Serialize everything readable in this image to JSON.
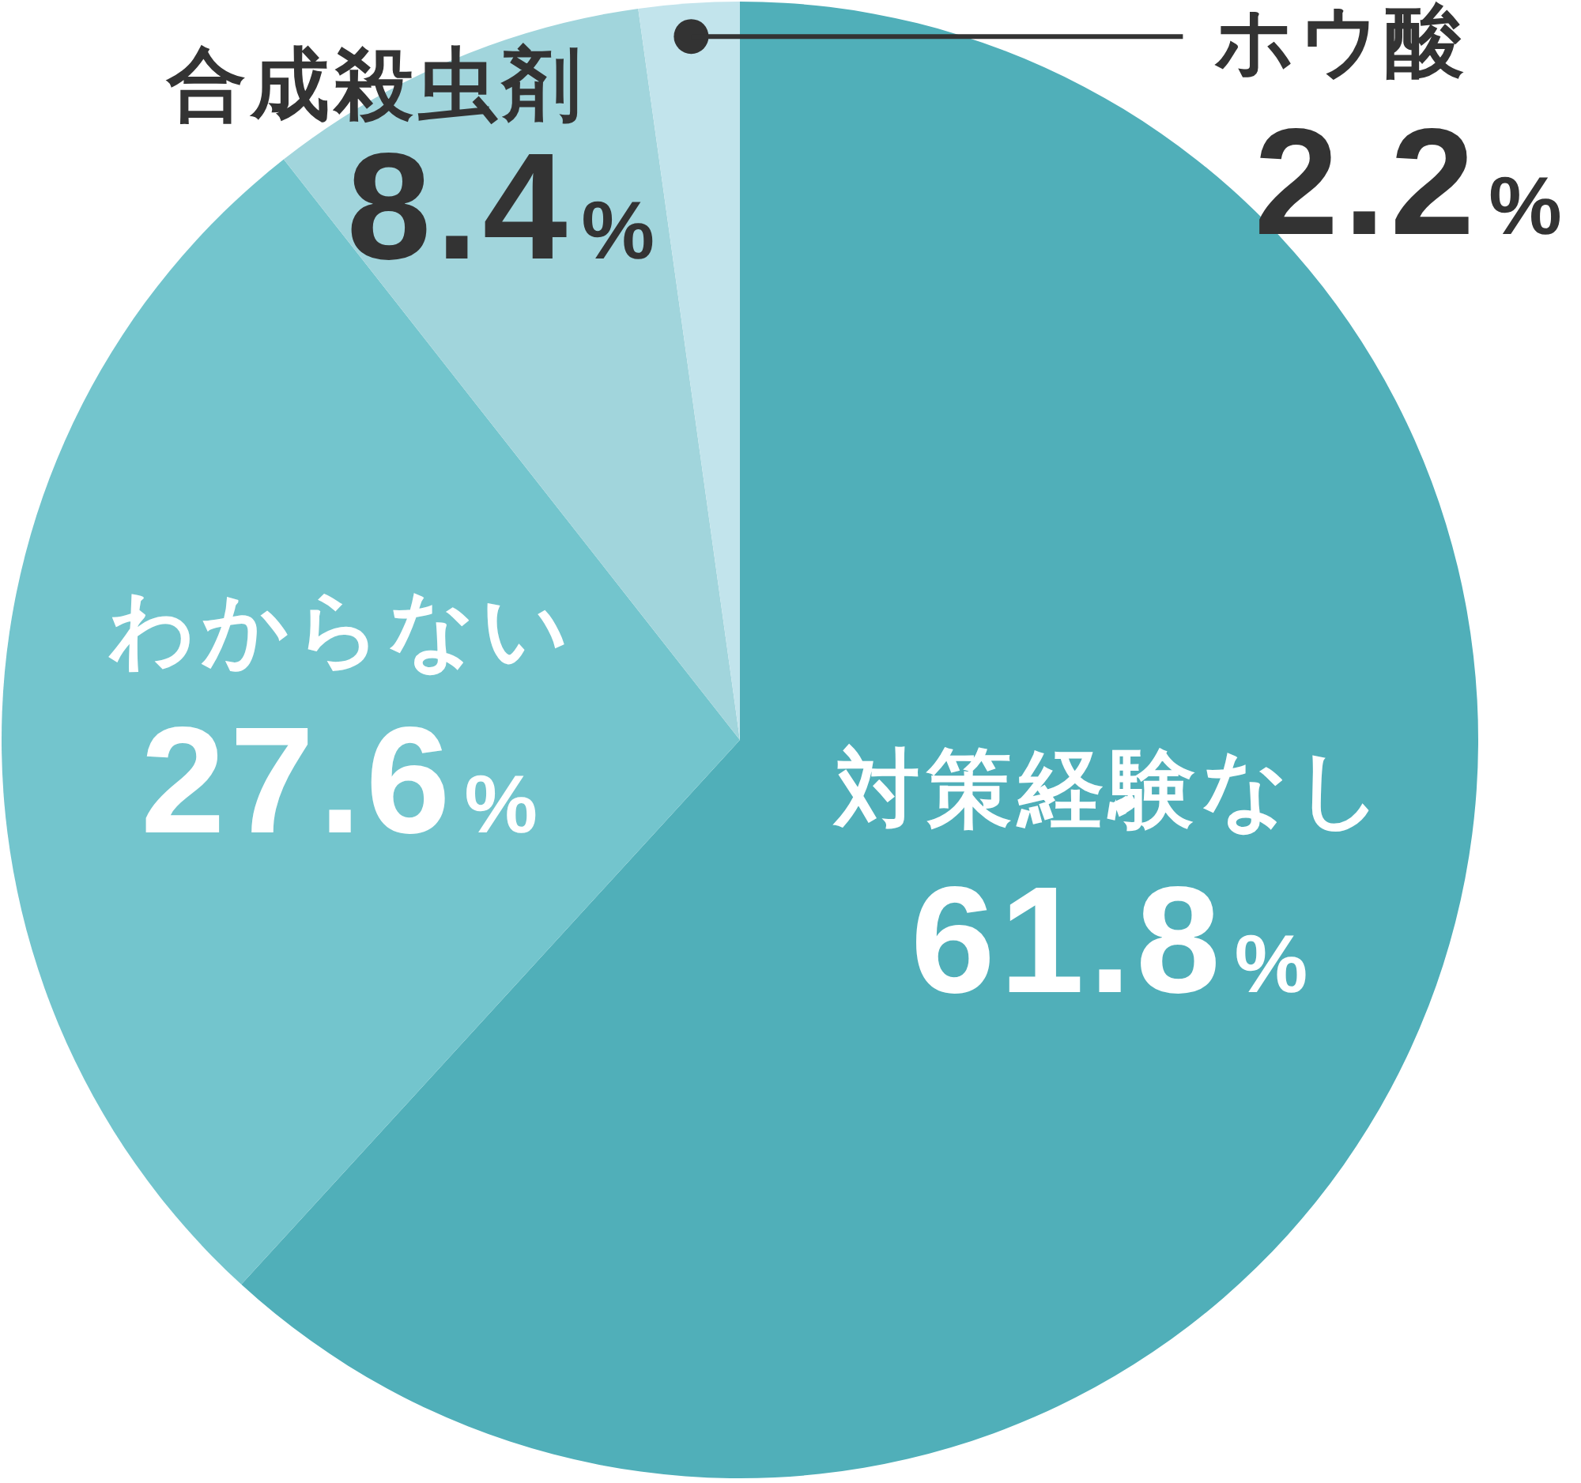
{
  "chart_data": {
    "type": "pie",
    "categories": [
      "対策経験なし",
      "わからない",
      "合成殺虫剤",
      "ホウ酸"
    ],
    "values": [
      61.8,
      27.6,
      8.4,
      2.2
    ],
    "colors": [
      "#50afb9",
      "#73c5cd",
      "#a1d5dc",
      "#c2e4ec"
    ],
    "value_labels": [
      "61.8%",
      "27.6%",
      "8.4%",
      "2.2%"
    ]
  }
}
